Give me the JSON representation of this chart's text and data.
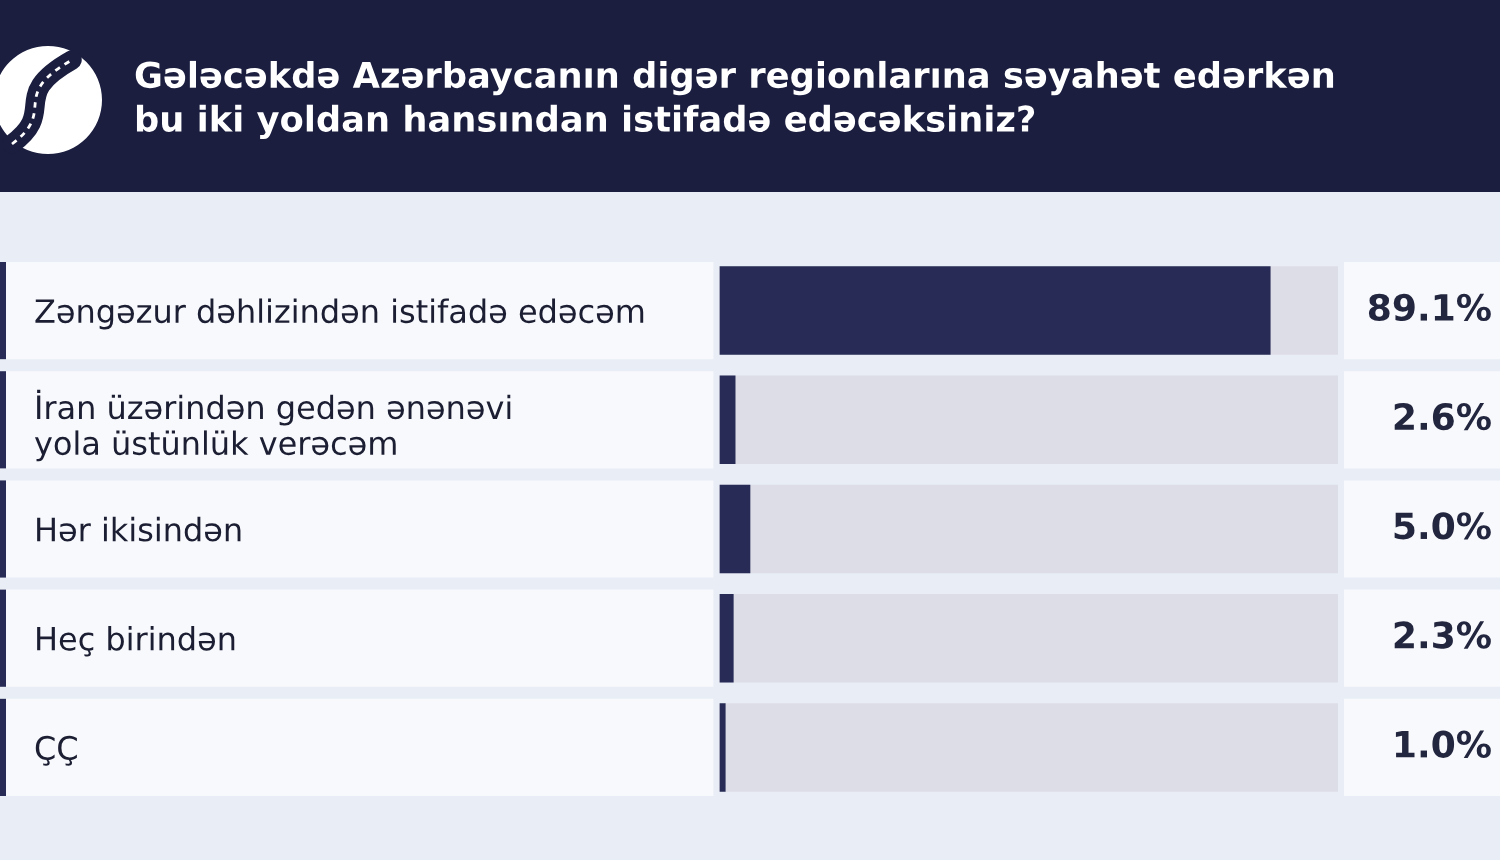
{
  "chart_data": {
    "type": "bar",
    "orientation": "horizontal",
    "title": "Gələcəkdə Azərbaycanın digər regionlarına səyahət edərkən\nbu iki yoldan hansından istifadə edəcəksiniz?",
    "categories": [
      "Zəngəzur dəhlizindən istifadə edəcəm",
      "İran üzərindən gedən ənənəvi\nyola üstünlük verəcəm",
      "Hər ikisindən",
      "Heç birindən",
      "ÇÇ"
    ],
    "values": [
      89.1,
      2.6,
      5.0,
      2.3,
      1.0
    ],
    "value_labels": [
      "89.1%",
      "2.6%",
      "5.0%",
      "2.3%",
      "1.0%"
    ],
    "color": "#272b55",
    "xlim": [
      0,
      100
    ],
    "tick_labels": "y"
  }
}
